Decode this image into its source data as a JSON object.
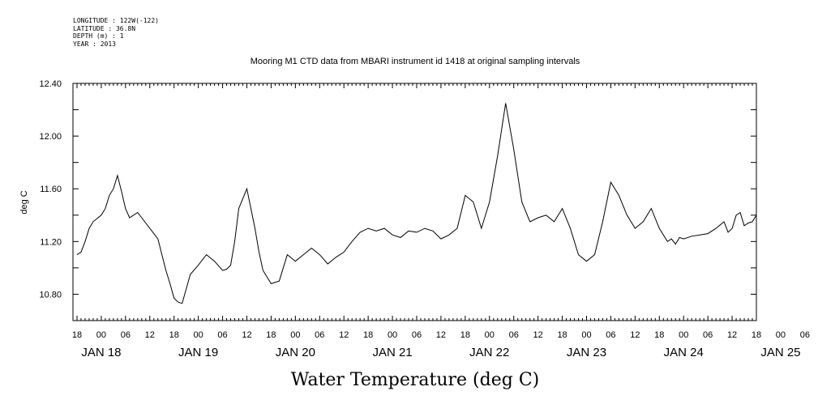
{
  "metadata": {
    "longitude": "LONGITUDE : 122W(-122)",
    "latitude": "LATITUDE : 36.8N",
    "depth": "DEPTH (m) : 1",
    "year": "YEAR : 2013"
  },
  "chart_data": {
    "type": "line",
    "title": "Mooring M1 CTD data from MBARI instrument id 1418 at original sampling intervals",
    "xlabel": "Water Temperature (deg C)",
    "ylabel": "deg C",
    "line_color": "#000000",
    "ylim": [
      10.6,
      12.4
    ],
    "yticks": [
      "12.40",
      "12.00",
      "11.60",
      "11.20",
      "10.80"
    ],
    "xlim": [
      -7,
      162
    ],
    "hour_ticks": [
      "18",
      "00",
      "06",
      "12",
      "18",
      "00",
      "06",
      "12",
      "18",
      "00",
      "06",
      "12",
      "18",
      "00",
      "06",
      "12",
      "18",
      "00",
      "06",
      "12",
      "18",
      "00",
      "06",
      "12",
      "18",
      "00",
      "06",
      "12",
      "18",
      "00",
      "06",
      "12",
      "18",
      "00",
      "06",
      "12"
    ],
    "day_labels": [
      "JAN 18",
      "JAN 19",
      "JAN 20",
      "JAN 21",
      "JAN 22",
      "JAN 23",
      "JAN 24",
      "JAN 25"
    ],
    "series": [
      {
        "x": [
          -6,
          -5,
          -4,
          -3,
          -2,
          0,
          1,
          2,
          3,
          4,
          5,
          6,
          7,
          8,
          9,
          10,
          12,
          14,
          15,
          16,
          17,
          18,
          19,
          20,
          22,
          24,
          26,
          28,
          30,
          31,
          32,
          33,
          34,
          36,
          37,
          38,
          39,
          40,
          42,
          44,
          46,
          48,
          50,
          52,
          54,
          56,
          58,
          60,
          62,
          64,
          66,
          68,
          70,
          72,
          74,
          76,
          78,
          80,
          82,
          84,
          86,
          88,
          90,
          92,
          94,
          96,
          98,
          100,
          102,
          104,
          106,
          108,
          110,
          112,
          114,
          116,
          118,
          120,
          122,
          124,
          126,
          128,
          130,
          132,
          134,
          136,
          138,
          140,
          141,
          142,
          143,
          144,
          146,
          148,
          150,
          152,
          154,
          155,
          156,
          157,
          158,
          159,
          160,
          161,
          162
        ],
        "y": [
          11.1,
          11.12,
          11.2,
          11.3,
          11.35,
          11.4,
          11.45,
          11.55,
          11.6,
          11.7,
          11.58,
          11.45,
          11.38,
          11.4,
          11.42,
          11.38,
          11.3,
          11.22,
          11.1,
          10.98,
          10.88,
          10.77,
          10.74,
          10.73,
          10.95,
          11.02,
          11.1,
          11.05,
          10.98,
          10.99,
          11.02,
          11.2,
          11.45,
          11.6,
          11.45,
          11.3,
          11.12,
          10.98,
          10.88,
          10.9,
          11.1,
          11.05,
          11.1,
          11.15,
          11.1,
          11.03,
          11.08,
          11.12,
          11.2,
          11.27,
          11.3,
          11.28,
          11.3,
          11.25,
          11.23,
          11.28,
          11.27,
          11.3,
          11.28,
          11.22,
          11.25,
          11.3,
          11.55,
          11.5,
          11.3,
          11.5,
          11.85,
          12.25,
          11.9,
          11.5,
          11.35,
          11.38,
          11.4,
          11.35,
          11.45,
          11.3,
          11.1,
          11.05,
          11.1,
          11.35,
          11.65,
          11.55,
          11.4,
          11.3,
          11.35,
          11.45,
          11.3,
          11.2,
          11.22,
          11.18,
          11.23,
          11.22,
          11.24,
          11.25,
          11.26,
          11.3,
          11.35,
          11.27,
          11.3,
          11.4,
          11.42,
          11.32,
          11.34,
          11.35,
          11.4
        ]
      }
    ]
  }
}
